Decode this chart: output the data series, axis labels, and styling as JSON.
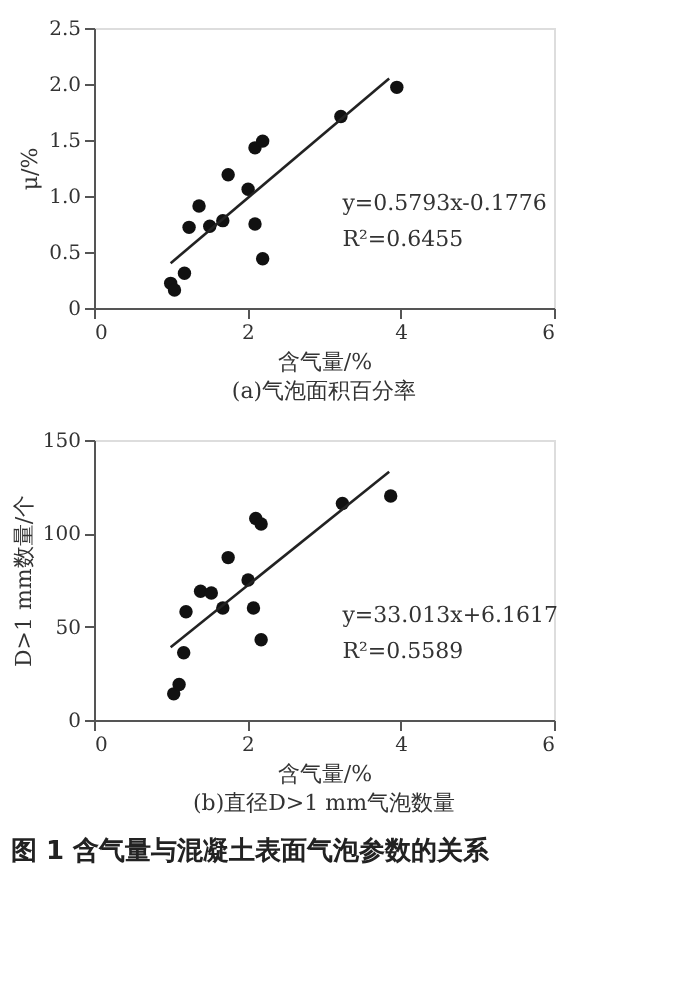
{
  "chart_data": [
    {
      "type": "scatter",
      "title": "(a)气泡面积百分率",
      "xlabel": "含气量/%",
      "ylabel": "μ/%",
      "xlim": [
        0,
        6
      ],
      "xticks": [
        0,
        2,
        4,
        6
      ],
      "ylim": [
        0,
        2.5
      ],
      "yticks": [
        0,
        0.5,
        {
          "value": 1,
          "label": "1.0"
        },
        1.5,
        {
          "value": 2,
          "label": "2.0"
        },
        2.5
      ],
      "grid": false,
      "series": [
        {
          "type": "scatter",
          "marker": "circle",
          "color": "#111111",
          "x": [
            1.0,
            1.05,
            1.18,
            1.24,
            1.37,
            1.51,
            1.68,
            1.75,
            2.01,
            2.1,
            2.1,
            2.2,
            2.2,
            3.22,
            3.95
          ],
          "values": [
            0.22,
            0.16,
            0.31,
            0.72,
            0.91,
            0.73,
            0.78,
            1.19,
            1.06,
            0.75,
            1.43,
            1.49,
            0.44,
            1.71,
            1.97
          ]
        },
        {
          "type": "line",
          "marker": "none",
          "color": "#222222",
          "x": [
            1.0,
            3.85
          ],
          "values": [
            0.4,
            2.05
          ]
        }
      ],
      "annotations": [
        "y=0.5793x-0.1776",
        "R²=0.6455"
      ]
    },
    {
      "type": "scatter",
      "title": "(b)直径D>1 mm气泡数量",
      "xlabel": "含气量/%",
      "ylabel": "D>1 mm数量/个",
      "xlim": [
        0,
        6
      ],
      "xticks": [
        0,
        2,
        4,
        6
      ],
      "ylim": [
        0,
        150
      ],
      "yticks": [
        0,
        50,
        100,
        150
      ],
      "grid": false,
      "series": [
        {
          "type": "scatter",
          "marker": "circle",
          "color": "#111111",
          "x": [
            1.04,
            1.11,
            1.17,
            1.2,
            1.39,
            1.53,
            1.68,
            1.75,
            2.01,
            2.08,
            2.11,
            2.18,
            2.18,
            3.24,
            3.87
          ],
          "values": [
            14,
            19,
            36,
            58,
            69,
            68,
            60,
            87,
            75,
            60,
            108,
            105,
            43,
            116,
            120
          ]
        },
        {
          "type": "line",
          "marker": "none",
          "color": "#222222",
          "x": [
            1.0,
            3.85
          ],
          "values": [
            39,
            133
          ]
        }
      ],
      "annotations": [
        "y=33.013x+6.1617",
        "R²=0.5589",
        "图 1   含气量与混凝土表面气泡参数的关系"
      ]
    }
  ]
}
